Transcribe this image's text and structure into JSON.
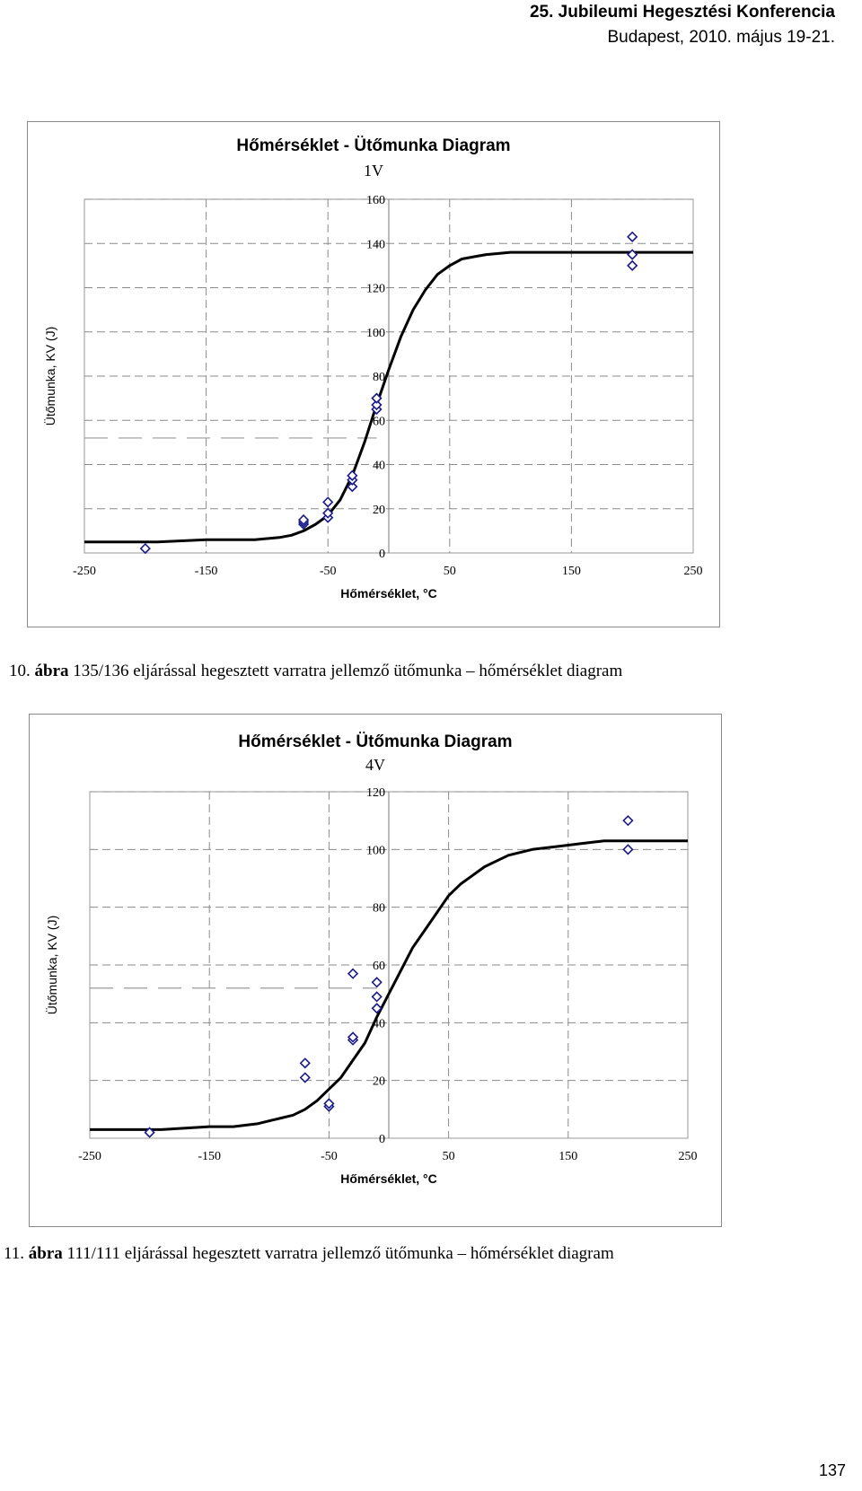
{
  "header": {
    "line1": "25. Jubileumi Hegesztési Konferencia",
    "line2": "Budapest, 2010. május 19-21."
  },
  "page_number": "137",
  "figures": [
    {
      "caption_num": "10.",
      "caption_word": "ábra",
      "caption_text": "135/136 eljárással hegesztett varratra jellemző ütőmunka – hőmérséklet diagram"
    },
    {
      "caption_num": "11.",
      "caption_word": "ábra",
      "caption_text": "111/111 eljárással hegesztett varratra jellemző ütőmunka – hőmérséklet diagram"
    }
  ],
  "chart_data": [
    {
      "type": "scatter",
      "title": "Hőmérséklet - Ütőmunka Diagram",
      "subtitle": "1V",
      "xlabel": "Hőmérséklet, °C",
      "ylabel": "Ütőmunka, KV (J)",
      "xlim": [
        -250,
        250
      ],
      "ylim": [
        0,
        160
      ],
      "xticks": [
        -250,
        -150,
        -50,
        50,
        150,
        250
      ],
      "yticks": [
        0,
        20,
        40,
        60,
        80,
        100,
        120,
        140,
        160
      ],
      "grid": true,
      "points": [
        {
          "x": -200,
          "y": 2
        },
        {
          "x": -70,
          "y": 13
        },
        {
          "x": -70,
          "y": 14
        },
        {
          "x": -70,
          "y": 15
        },
        {
          "x": -50,
          "y": 16
        },
        {
          "x": -50,
          "y": 18
        },
        {
          "x": -50,
          "y": 23
        },
        {
          "x": -30,
          "y": 30
        },
        {
          "x": -30,
          "y": 33
        },
        {
          "x": -30,
          "y": 35
        },
        {
          "x": -10,
          "y": 65
        },
        {
          "x": -10,
          "y": 67
        },
        {
          "x": -10,
          "y": 70
        },
        {
          "x": 200,
          "y": 130
        },
        {
          "x": 200,
          "y": 135
        },
        {
          "x": 200,
          "y": 143
        }
      ],
      "fit_curve": {
        "x": [
          -250,
          -190,
          -150,
          -130,
          -110,
          -90,
          -80,
          -70,
          -60,
          -50,
          -40,
          -30,
          -20,
          -10,
          0,
          10,
          20,
          30,
          40,
          50,
          60,
          70,
          80,
          100,
          120,
          150,
          250
        ],
        "y": [
          5,
          5,
          6,
          6,
          6,
          7,
          8,
          10,
          13,
          17,
          24,
          35,
          50,
          67,
          83,
          98,
          110,
          119,
          126,
          130,
          133,
          134,
          135,
          136,
          136,
          136,
          136
        ]
      },
      "reference_line": {
        "y": 52,
        "x_end": -10
      }
    },
    {
      "type": "scatter",
      "title": "Hőmérséklet - Ütőmunka Diagram",
      "subtitle": "4V",
      "xlabel": "Hőmérséklet, °C",
      "ylabel": "Ütőmunka, KV (J)",
      "xlim": [
        -250,
        250
      ],
      "ylim": [
        0,
        120
      ],
      "xticks": [
        -250,
        -150,
        -50,
        50,
        150,
        250
      ],
      "yticks": [
        0,
        20,
        40,
        60,
        80,
        100,
        120
      ],
      "grid": true,
      "points": [
        {
          "x": -200,
          "y": 2
        },
        {
          "x": -70,
          "y": 21
        },
        {
          "x": -70,
          "y": 26
        },
        {
          "x": -50,
          "y": 11
        },
        {
          "x": -50,
          "y": 12
        },
        {
          "x": -30,
          "y": 34
        },
        {
          "x": -30,
          "y": 35
        },
        {
          "x": -30,
          "y": 57
        },
        {
          "x": -10,
          "y": 45
        },
        {
          "x": -10,
          "y": 49
        },
        {
          "x": -10,
          "y": 54
        },
        {
          "x": 200,
          "y": 100
        },
        {
          "x": 200,
          "y": 110
        }
      ],
      "fit_curve": {
        "x": [
          -250,
          -190,
          -150,
          -130,
          -110,
          -100,
          -90,
          -80,
          -70,
          -60,
          -50,
          -40,
          -30,
          -20,
          -10,
          0,
          10,
          20,
          30,
          40,
          50,
          60,
          70,
          80,
          90,
          100,
          120,
          140,
          160,
          180,
          200,
          250
        ],
        "y": [
          3,
          3,
          4,
          4,
          5,
          6,
          7,
          8,
          10,
          13,
          17,
          21,
          27,
          33,
          42,
          50,
          58,
          66,
          72,
          78,
          84,
          88,
          91,
          94,
          96,
          98,
          100,
          101,
          102,
          103,
          103,
          103
        ]
      },
      "reference_line": {
        "y": 52,
        "x_end": -10
      }
    }
  ]
}
